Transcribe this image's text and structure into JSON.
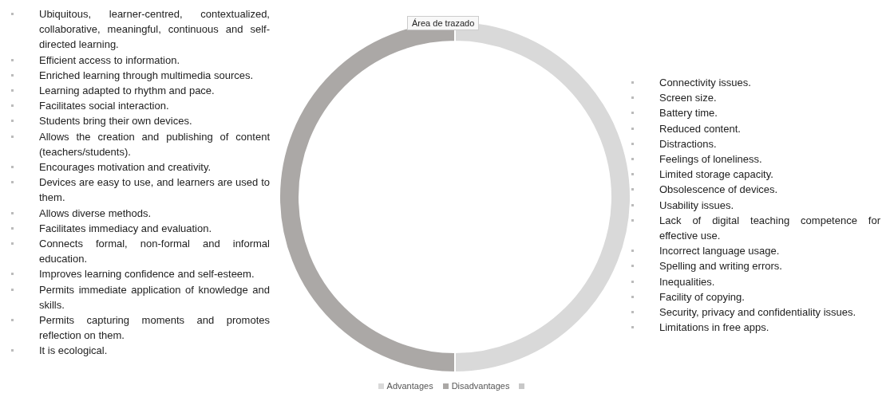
{
  "chart_data": {
    "type": "donut",
    "legend": "bottom",
    "categories": [
      "Advantages",
      "Disadvantages",
      null
    ],
    "values": [
      50,
      50,
      0
    ],
    "colors": [
      "#d9d9d9",
      "#aba8a6",
      "#c8c8c8"
    ],
    "annotations": [
      "Área de trazado",
      "Ubiquitous, learner-centred, contextualized, collaborative, meaningful, continuous and self-directed learning.",
      "Efficient access to information.",
      "Enriched learning through multimedia sources.",
      "Learning adapted to rhythm and pace.",
      "Facilitates social interaction.",
      "Students bring their own devices.",
      "Allows the creation and publishing of content (teachers/students).",
      "Encourages motivation and creativity.",
      "Devices are easy to use, and learners are used to them.",
      "Allows diverse methods.",
      "Facilitates immediacy and evaluation.",
      "Connects formal, non-formal and informal education.",
      "Improves learning confidence and self-esteem.",
      "Permits immediate application of knowledge and skills.",
      "Permits capturing moments and promotes reflection on them.",
      "It is ecological.",
      "Connectivity issues.",
      "Screen size.",
      "Battery time.",
      "Reduced content.",
      "Distractions.",
      "Feelings of loneliness.",
      "Limited storage capacity.",
      "Obsolescence of devices.",
      "Usability issues.",
      "Lack of digital teaching competence for effective use.",
      "Incorrect language usage.",
      "Spelling and writing errors.",
      "Inequalities.",
      "Facility of copying.",
      "Security, privacy and confidentiality issues.",
      "Limitations in free apps."
    ]
  }
}
